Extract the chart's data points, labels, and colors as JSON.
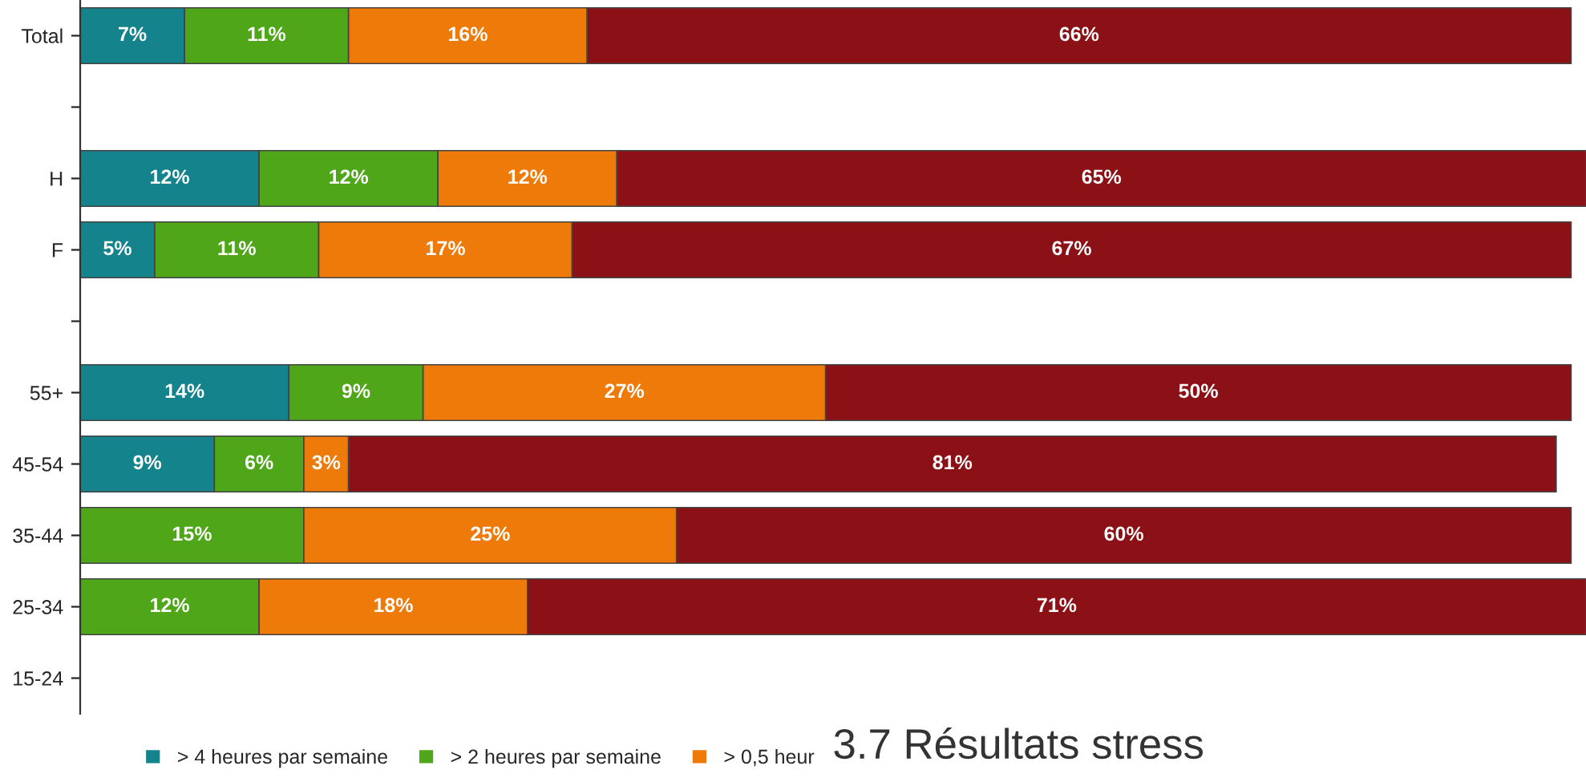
{
  "chart_data": {
    "type": "bar",
    "orientation": "horizontal",
    "stacked": true,
    "categories": [
      "Total",
      null,
      "H",
      "F",
      null,
      "55+",
      "45-54",
      "35-44",
      "25-34",
      "15-24"
    ],
    "series": [
      {
        "name": "> 4 heures par semaine",
        "color": "#14838c",
        "values": [
          7,
          null,
          12,
          5,
          null,
          14,
          9,
          null,
          null,
          null
        ],
        "value_labels": [
          "7%",
          null,
          "12%",
          "5%",
          null,
          "14%",
          "9%",
          null,
          null,
          null
        ]
      },
      {
        "name": "> 2 heures par semaine",
        "color": "#4ea618",
        "values": [
          11,
          null,
          12,
          11,
          null,
          9,
          6,
          15,
          12,
          null
        ],
        "value_labels": [
          "11%",
          null,
          "12%",
          "11%",
          null,
          "9%",
          "6%",
          "15%",
          "12%",
          null
        ]
      },
      {
        "name": "> 0,5 heur",
        "color": "#ee7a0a",
        "values": [
          16,
          null,
          12,
          17,
          null,
          27,
          3,
          25,
          18,
          null
        ],
        "value_labels": [
          "16%",
          null,
          "12%",
          "17%",
          null,
          "27%",
          "3%",
          "25%",
          "18%",
          null
        ]
      },
      {
        "color": "#8b1116",
        "values": [
          66,
          null,
          65,
          67,
          null,
          50,
          81,
          60,
          71,
          null
        ],
        "value_labels": [
          "66%",
          null,
          "65%",
          "67%",
          null,
          "50%",
          "81%",
          "60%",
          "71%",
          null
        ]
      }
    ],
    "legend": "bottom left",
    "annotations": [
      "3.7 Résultats stress"
    ]
  }
}
